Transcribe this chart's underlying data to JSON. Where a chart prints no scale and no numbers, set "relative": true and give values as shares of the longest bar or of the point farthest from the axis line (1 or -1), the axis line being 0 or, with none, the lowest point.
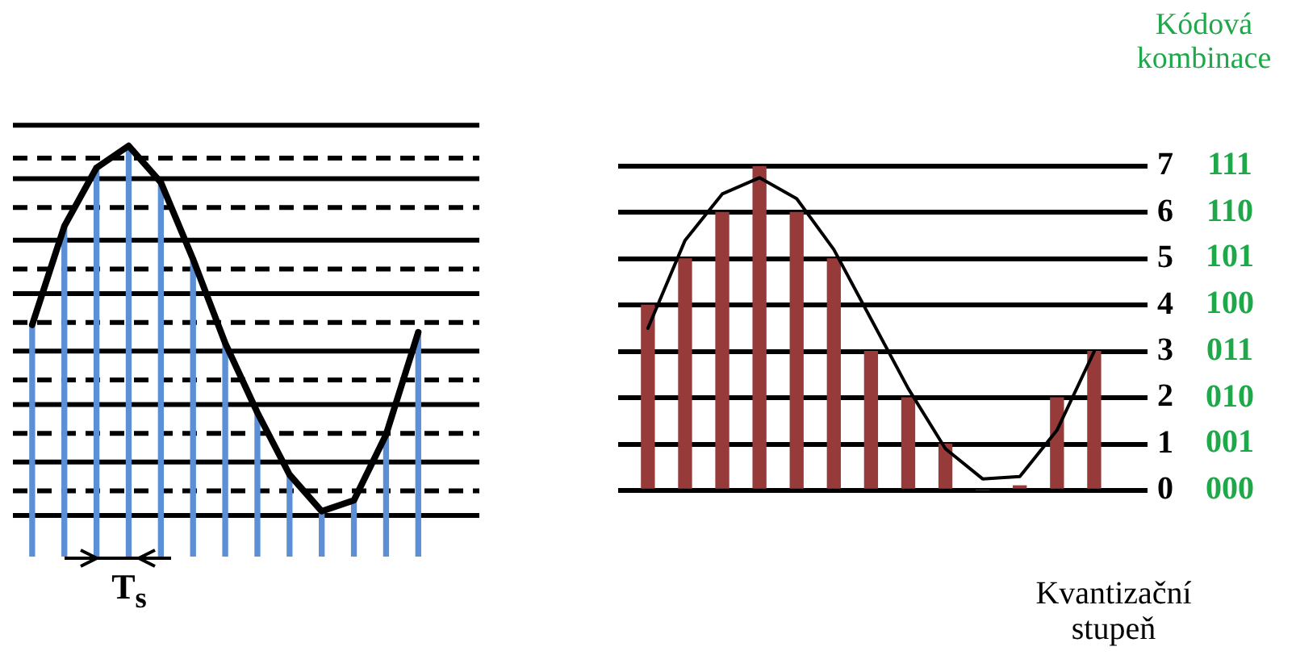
{
  "chart_data": [
    {
      "type": "bar",
      "relative": true,
      "tick_labels": false,
      "categories": [
        null,
        null,
        null,
        null,
        null,
        null,
        null,
        null,
        null,
        null,
        null,
        null,
        null
      ],
      "series": [
        {
          "color": "#5b8fd6",
          "values": [
            0.56,
            0.8,
            0.95,
            1.0,
            0.91,
            0.72,
            0.52,
            0.35,
            0.2,
            0.11,
            0.14,
            0.3,
            0.55
          ]
        }
      ],
      "ref_lines": [
        {
          "axis": "y",
          "value": 1.05,
          "line_style": "solid"
        },
        {
          "axis": "y",
          "value": 0.97,
          "line_style": "dashed"
        },
        {
          "axis": "y",
          "value": 0.92,
          "line_style": "solid"
        },
        {
          "axis": "y",
          "value": 0.85,
          "line_style": "dashed"
        },
        {
          "axis": "y",
          "value": 0.77,
          "line_style": "solid"
        },
        {
          "axis": "y",
          "value": 0.7,
          "line_style": "dashed"
        },
        {
          "axis": "y",
          "value": 0.64,
          "line_style": "solid"
        },
        {
          "axis": "y",
          "value": 0.57,
          "line_style": "dashed"
        },
        {
          "axis": "y",
          "value": 0.5,
          "line_style": "solid"
        },
        {
          "axis": "y",
          "value": 0.43,
          "line_style": "dashed"
        },
        {
          "axis": "y",
          "value": 0.37,
          "line_style": "solid"
        },
        {
          "axis": "y",
          "value": 0.3,
          "line_style": "dashed"
        },
        {
          "axis": "y",
          "value": 0.23,
          "line_style": "solid"
        },
        {
          "axis": "y",
          "value": 0.16,
          "line_style": "dashed"
        },
        {
          "axis": "y",
          "value": 0.1,
          "line_style": "solid"
        }
      ],
      "annotations": [
        "T$_{s}$"
      ]
    },
    {
      "type": "line",
      "relative": true,
      "tick_labels": false,
      "categories": [
        null,
        null,
        null,
        null,
        null,
        null,
        null,
        null,
        null,
        null,
        null,
        null,
        null
      ],
      "series": [
        {
          "color": "#000000",
          "values": [
            0.51,
            0.78,
            0.94,
            1.0,
            0.9,
            0.69,
            0.46,
            0.27,
            0.1,
            0,
            0.03,
            0.21,
            0.49
          ]
        }
      ]
    },
    {
      "type": "bar",
      "categories": [
        null,
        null,
        null,
        null,
        null,
        null,
        null,
        null,
        null,
        null,
        null,
        null,
        null
      ],
      "ylim": [
        0,
        7
      ],
      "yticks": [
        0,
        1,
        2,
        3,
        4,
        5,
        6,
        7
      ],
      "grid": "y",
      "tick_labels": "y",
      "series": [
        {
          "color": "#963a3a",
          "values": [
            4,
            5,
            6,
            7,
            6,
            5,
            3,
            2,
            1,
            0,
            0.1,
            2,
            3
          ]
        },
        {
          "type": "line",
          "color": "#000000",
          "values": [
            3.5,
            5.4,
            6.4,
            6.75,
            6.3,
            5.2,
            3.7,
            2.2,
            0.9,
            0.25,
            0.3,
            1.3,
            3.0
          ]
        }
      ],
      "annotations": [
        "Kódová kombinace",
        "111",
        "110",
        "101",
        "100",
        "011",
        "010",
        "001",
        "000",
        "Kvantizační stupeň"
      ]
    }
  ]
}
